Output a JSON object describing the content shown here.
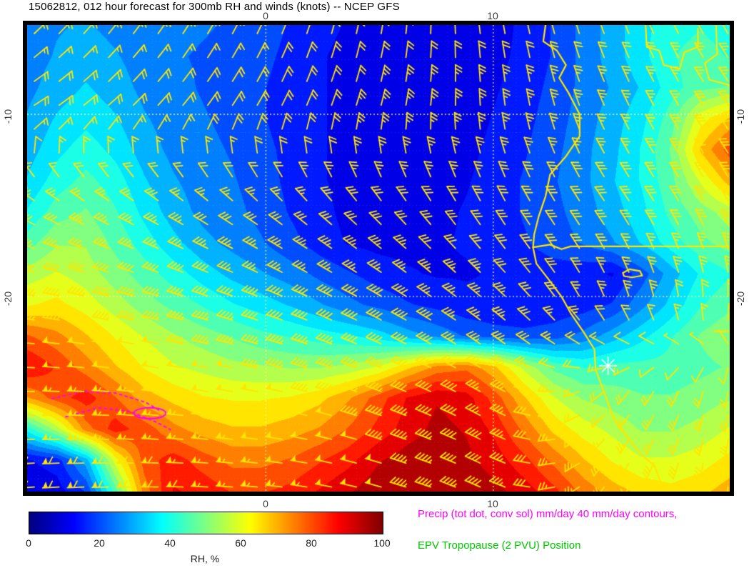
{
  "title": "15062812, 012 hour forecast for 300mb RH and winds (knots) -- NCEP GFS",
  "legend": {
    "precip": "Precip (tot dot, conv sol) mm/day 40 mm/day contours,",
    "precip_color": "#ff00ff",
    "epv": "EPV Tropopause (2 PVU) Position",
    "epv_color": "#00c800"
  },
  "axes": {
    "lon_ticks": [
      {
        "label": "0",
        "lon": 0
      },
      {
        "label": "10",
        "lon": 10
      }
    ],
    "lat_ticks": [
      {
        "label": "-10",
        "lat": -10
      },
      {
        "label": "-20",
        "lat": -20
      }
    ],
    "lon_range": [
      -10.5,
      20.4
    ],
    "lat_range": [
      -30.7,
      -5.1
    ],
    "grid": "dotted"
  },
  "colorbar": {
    "label": "RH, %",
    "ticks": [
      "0",
      "20",
      "40",
      "60",
      "80",
      "100"
    ],
    "min": 0,
    "max": 100,
    "colormap": "jet"
  },
  "chart_data": {
    "type": "heatmap",
    "field": "300mb relative humidity (%)",
    "model": "NCEP GFS",
    "run": "15062812",
    "forecast_hour": 12,
    "wind_units": "knots",
    "wind_color": "#ffe600",
    "coast_color": "#ffe600",
    "marker": {
      "type": "asterisk",
      "lon": 15.05,
      "lat": -23.8,
      "color": "#ffffff"
    },
    "rh_grid": {
      "cols": 25,
      "rows": 16,
      "lon_range": [
        -10.5,
        20.4
      ],
      "lat_range": [
        -5.1,
        -30.7
      ],
      "contour_interval": 5,
      "values": [
        [
          25,
          27,
          28,
          26,
          25,
          24,
          23,
          22,
          20,
          17,
          14,
          12,
          10,
          9,
          8,
          9,
          10,
          14,
          18,
          24,
          30,
          36,
          40,
          42,
          40
        ],
        [
          25,
          28,
          30,
          28,
          25,
          23,
          22,
          21,
          19,
          16,
          13,
          11,
          9,
          8,
          8,
          9,
          11,
          14,
          18,
          24,
          30,
          36,
          42,
          45,
          42
        ],
        [
          26,
          30,
          33,
          30,
          26,
          24,
          22,
          20,
          18,
          15,
          13,
          11,
          9,
          8,
          8,
          9,
          12,
          15,
          19,
          24,
          28,
          33,
          40,
          46,
          48
        ],
        [
          28,
          33,
          36,
          33,
          28,
          25,
          23,
          21,
          18,
          15,
          13,
          11,
          9,
          8,
          8,
          10,
          13,
          16,
          20,
          25,
          30,
          36,
          45,
          60,
          68
        ],
        [
          30,
          36,
          40,
          36,
          30,
          26,
          24,
          22,
          19,
          16,
          13,
          11,
          9,
          8,
          9,
          11,
          14,
          17,
          21,
          26,
          31,
          38,
          48,
          68,
          80
        ],
        [
          33,
          40,
          44,
          40,
          33,
          28,
          25,
          23,
          20,
          16,
          13,
          11,
          9,
          9,
          10,
          12,
          15,
          18,
          22,
          26,
          32,
          38,
          46,
          58,
          70
        ],
        [
          38,
          45,
          48,
          43,
          36,
          30,
          26,
          24,
          21,
          17,
          14,
          11,
          10,
          10,
          11,
          13,
          15,
          18,
          21,
          25,
          30,
          36,
          44,
          50,
          55
        ],
        [
          45,
          52,
          52,
          46,
          40,
          34,
          29,
          26,
          23,
          19,
          15,
          12,
          11,
          11,
          12,
          13,
          15,
          17,
          20,
          23,
          27,
          33,
          40,
          46,
          50
        ],
        [
          55,
          58,
          55,
          50,
          45,
          40,
          35,
          31,
          28,
          25,
          21,
          18,
          15,
          13,
          12,
          12,
          13,
          14,
          15,
          14,
          12,
          20,
          30,
          38,
          42
        ],
        [
          62,
          64,
          60,
          55,
          50,
          46,
          42,
          38,
          35,
          32,
          28,
          24,
          21,
          18,
          16,
          14,
          13,
          13,
          14,
          15,
          18,
          26,
          34,
          42,
          46
        ],
        [
          78,
          74,
          68,
          62,
          57,
          53,
          50,
          47,
          44,
          42,
          40,
          38,
          35,
          30,
          26,
          22,
          20,
          19,
          20,
          24,
          30,
          36,
          42,
          48,
          52
        ],
        [
          88,
          82,
          75,
          68,
          62,
          58,
          56,
          54,
          53,
          52,
          52,
          54,
          58,
          66,
          74,
          76,
          68,
          56,
          46,
          42,
          44,
          44,
          44,
          46,
          48
        ],
        [
          72,
          80,
          85,
          78,
          70,
          66,
          63,
          62,
          62,
          63,
          66,
          72,
          80,
          88,
          92,
          90,
          80,
          68,
          58,
          52,
          50,
          48,
          48,
          50,
          52
        ],
        [
          40,
          55,
          75,
          85,
          80,
          74,
          70,
          68,
          68,
          70,
          73,
          78,
          84,
          90,
          94,
          92,
          86,
          76,
          66,
          60,
          56,
          52,
          52,
          54,
          58
        ],
        [
          12,
          15,
          30,
          60,
          80,
          85,
          80,
          76,
          76,
          78,
          82,
          86,
          92,
          95,
          96,
          94,
          90,
          84,
          76,
          68,
          62,
          58,
          58,
          60,
          64
        ],
        [
          8,
          10,
          18,
          45,
          75,
          88,
          86,
          82,
          82,
          84,
          88,
          92,
          96,
          97,
          97,
          96,
          94,
          90,
          84,
          76,
          70,
          66,
          64,
          66,
          70
        ]
      ]
    },
    "wind_grid": {
      "cols": 7,
      "rows": 6,
      "format": "[direction_from_deg, speed_knots]",
      "values": [
        [
          [
            45,
            15
          ],
          [
            35,
            15
          ],
          [
            25,
            15
          ],
          [
            10,
            20
          ],
          [
            350,
            20
          ],
          [
            340,
            20
          ],
          [
            330,
            20
          ]
        ],
        [
          [
            60,
            20
          ],
          [
            45,
            20
          ],
          [
            30,
            20
          ],
          [
            15,
            25
          ],
          [
            355,
            25
          ],
          [
            335,
            25
          ],
          [
            325,
            30
          ]
        ],
        [
          [
            300,
            30
          ],
          [
            300,
            32
          ],
          [
            308,
            30
          ],
          [
            318,
            30
          ],
          [
            330,
            30
          ],
          [
            325,
            30
          ],
          [
            332,
            30
          ]
        ],
        [
          [
            280,
            45
          ],
          [
            285,
            45
          ],
          [
            290,
            40
          ],
          [
            298,
            40
          ],
          [
            310,
            35
          ],
          [
            340,
            25
          ],
          [
            5,
            20
          ]
        ],
        [
          [
            270,
            55
          ],
          [
            275,
            55
          ],
          [
            280,
            50
          ],
          [
            290,
            45
          ],
          [
            300,
            35
          ],
          [
            220,
            25
          ],
          [
            190,
            25
          ]
        ],
        [
          [
            265,
            60
          ],
          [
            270,
            60
          ],
          [
            275,
            55
          ],
          [
            285,
            50
          ],
          [
            295,
            40
          ],
          [
            210,
            30
          ],
          [
            185,
            30
          ]
        ]
      ]
    },
    "coastline": [
      [
        12.3,
        -5.1
      ],
      [
        12.2,
        -6.0
      ],
      [
        12.8,
        -6.5
      ],
      [
        13.2,
        -7.3
      ],
      [
        12.9,
        -8.0
      ],
      [
        13.3,
        -8.8
      ],
      [
        13.8,
        -10.0
      ],
      [
        13.8,
        -11.2
      ],
      [
        13.2,
        -12.3
      ],
      [
        12.5,
        -13.3
      ],
      [
        12.3,
        -14.5
      ],
      [
        12.0,
        -15.6
      ],
      [
        11.8,
        -16.6
      ],
      [
        11.75,
        -17.3
      ],
      [
        11.9,
        -18.2
      ],
      [
        12.4,
        -19.0
      ],
      [
        13.0,
        -20.0
      ],
      [
        13.4,
        -20.9
      ],
      [
        14.0,
        -22.0
      ],
      [
        14.45,
        -22.9
      ],
      [
        14.5,
        -24.0
      ],
      [
        14.8,
        -25.0
      ],
      [
        15.1,
        -26.0
      ],
      [
        15.3,
        -26.7
      ],
      [
        16.2,
        -28.2
      ],
      [
        16.45,
        -28.6
      ],
      [
        17.1,
        -29.3
      ],
      [
        17.3,
        -30.0
      ],
      [
        17.6,
        -30.7
      ]
    ],
    "borders": [
      [
        [
          11.75,
          -17.3
        ],
        [
          12.5,
          -17.15
        ],
        [
          13.0,
          -17.4
        ],
        [
          13.4,
          -17.25
        ],
        [
          20.4,
          -17.25
        ]
      ],
      [
        [
          16.7,
          -5.1
        ],
        [
          16.75,
          -6.3
        ],
        [
          17.3,
          -6.5
        ],
        [
          17.5,
          -7.3
        ],
        [
          18.2,
          -7.5
        ],
        [
          18.4,
          -6.6
        ],
        [
          19.0,
          -6.3
        ],
        [
          19.0,
          -5.3
        ]
      ],
      [
        [
          19.8,
          -5.1
        ],
        [
          19.85,
          -6.7
        ],
        [
          19.3,
          -7.2
        ],
        [
          19.5,
          -8.1
        ],
        [
          20.4,
          -8.4
        ]
      ],
      [
        [
          19.7,
          -21.9
        ],
        [
          20.4,
          -21.9
        ]
      ],
      [
        [
          15.7,
          -18.7
        ],
        [
          16.0,
          -18.5
        ],
        [
          16.45,
          -18.6
        ],
        [
          16.55,
          -18.85
        ],
        [
          16.1,
          -18.95
        ],
        [
          15.75,
          -18.88
        ],
        [
          15.7,
          -18.7
        ]
      ]
    ],
    "precip_contours": {
      "dotted": [
        [
          [
            -9.4,
            -25.6
          ],
          [
            -8.0,
            -25.2
          ],
          [
            -6.6,
            -25.3
          ],
          [
            -5.3,
            -25.8
          ],
          [
            -4.6,
            -26.3
          ]
        ],
        [
          [
            -8.8,
            -26.6
          ],
          [
            -7.4,
            -26.1
          ],
          [
            -6.0,
            -26.3
          ],
          [
            -4.8,
            -26.9
          ],
          [
            -4.2,
            -27.3
          ]
        ]
      ],
      "solid_ellipse": {
        "lon": -5.1,
        "lat": -26.4,
        "rx_deg": 0.7,
        "ry_deg": 0.3
      }
    }
  }
}
